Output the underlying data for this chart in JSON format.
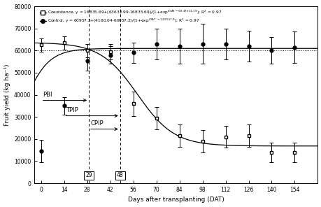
{
  "coex_x": [
    0,
    14,
    28,
    42,
    56,
    70,
    84,
    98,
    112,
    126,
    140,
    154
  ],
  "coex_y": [
    62500,
    63500,
    60000,
    59500,
    36000,
    29500,
    21500,
    19000,
    21000,
    21500,
    14000,
    14000
  ],
  "coex_yerr": [
    3000,
    3000,
    3000,
    3500,
    5500,
    5000,
    5000,
    5000,
    5000,
    5000,
    4500,
    4500
  ],
  "ctrl_x": [
    0,
    14,
    28,
    42,
    56,
    70,
    84,
    98,
    112,
    126,
    140,
    154
  ],
  "ctrl_y": [
    14500,
    35000,
    55500,
    58000,
    59000,
    63000,
    62000,
    63000,
    63000,
    62000,
    60000,
    61500
  ],
  "ctrl_yerr": [
    5000,
    4000,
    4500,
    4000,
    4500,
    7000,
    8000,
    9000,
    7000,
    7000,
    6000,
    7000
  ],
  "coex_params": {
    "a": 16835.69,
    "b": 63632.99,
    "c": 58.47,
    "d": 11.19
  },
  "ctrl_params": {
    "a": 60957.2,
    "b": 4160.04,
    "c": -12.25,
    "d": 7.9
  },
  "xlabel": "Days after transplanting (DAT)",
  "ylabel": "Fruit yield (kg ha⁻¹)",
  "ylim": [
    0,
    80000
  ],
  "xlim": [
    -4,
    168
  ],
  "yticks": [
    0,
    10000,
    20000,
    30000,
    40000,
    50000,
    60000,
    70000,
    80000
  ],
  "xticks": [
    0,
    14,
    28,
    42,
    56,
    70,
    84,
    98,
    112,
    126,
    140,
    154
  ],
  "pbi_y": 37500,
  "tpip_y": 30500,
  "cpip_y": 24500,
  "pbi_x_start": 0,
  "pbi_x_end": 29,
  "tpip_x_start": 14,
  "tpip_x_end": 48,
  "cpip_x_start": 29,
  "cpip_x_end": 48,
  "vline1_x": 29,
  "vline2_x": 48,
  "hline_y": 60000,
  "bg_color": "#ffffff",
  "line_color": "#000000"
}
